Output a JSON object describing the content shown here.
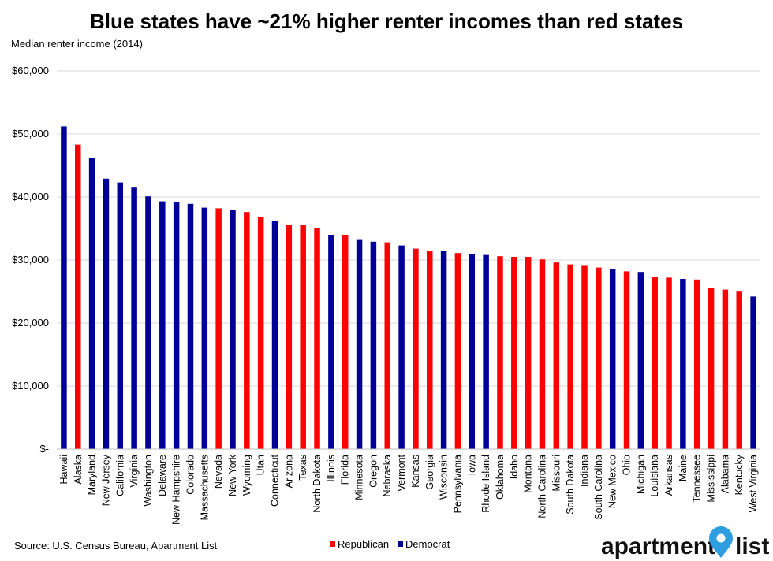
{
  "chart_data": {
    "type": "bar",
    "title": "Blue states have ~21% higher renter incomes than red states",
    "ylabel": "Median renter income (2014)",
    "xlabel": "",
    "ylim": [
      0,
      60000
    ],
    "yticks": [
      0,
      10000,
      20000,
      30000,
      40000,
      50000,
      60000
    ],
    "ytick_labels": [
      "$-",
      "$10,000",
      "$20,000",
      "$30,000",
      "$40,000",
      "$50,000",
      "$60,000"
    ],
    "grid": true,
    "legend_position": "bottom-center",
    "legend": [
      {
        "name": "Republican",
        "color": "#ff0000"
      },
      {
        "name": "Democrat",
        "color": "#000099"
      }
    ],
    "categories": [
      "Hawaii",
      "Alaska",
      "Maryland",
      "New Jersey",
      "California",
      "Virginia",
      "Washington",
      "Delaware",
      "New Hampshire",
      "Colorado",
      "Massachusetts",
      "Nevada",
      "New York",
      "Wyoming",
      "Utah",
      "Connecticut",
      "Arizona",
      "Texas",
      "North Dakota",
      "Illinois",
      "Florida",
      "Minnesota",
      "Oregon",
      "Nebraska",
      "Vermont",
      "Kansas",
      "Georgia",
      "Wisconsin",
      "Pennsylvania",
      "Iowa",
      "Rhode Island",
      "Oklahoma",
      "Idaho",
      "Montana",
      "North Carolina",
      "Missouri",
      "South Dakota",
      "Indiana",
      "South Carolina",
      "New Mexico",
      "Ohio",
      "Michigan",
      "Louisiana",
      "Arkansas",
      "Maine",
      "Tennessee",
      "Mississippi",
      "Alabama",
      "Kentucky",
      "West Virginia"
    ],
    "values": [
      51200,
      48300,
      46200,
      42900,
      42300,
      41600,
      40100,
      39300,
      39200,
      38900,
      38300,
      38200,
      37900,
      37600,
      36800,
      36200,
      35600,
      35500,
      35000,
      34000,
      34000,
      33300,
      32900,
      32800,
      32300,
      31800,
      31500,
      31500,
      31100,
      30900,
      30800,
      30600,
      30500,
      30500,
      30100,
      29600,
      29300,
      29200,
      28800,
      28500,
      28200,
      28100,
      27300,
      27200,
      27000,
      26900,
      25500,
      25300,
      25100,
      24200
    ],
    "parties": [
      "Democrat",
      "Republican",
      "Democrat",
      "Democrat",
      "Democrat",
      "Democrat",
      "Democrat",
      "Democrat",
      "Democrat",
      "Democrat",
      "Democrat",
      "Republican",
      "Democrat",
      "Republican",
      "Republican",
      "Democrat",
      "Republican",
      "Republican",
      "Republican",
      "Democrat",
      "Republican",
      "Democrat",
      "Democrat",
      "Republican",
      "Democrat",
      "Republican",
      "Republican",
      "Democrat",
      "Republican",
      "Democrat",
      "Democrat",
      "Republican",
      "Republican",
      "Republican",
      "Republican",
      "Republican",
      "Republican",
      "Republican",
      "Republican",
      "Democrat",
      "Republican",
      "Democrat",
      "Republican",
      "Republican",
      "Democrat",
      "Republican",
      "Republican",
      "Republican",
      "Republican",
      "Democrat"
    ]
  },
  "footer": {
    "source": "Source: U.S. Census Bureau, Apartment List",
    "logo_left": "apartment",
    "logo_right": "list"
  },
  "colors": {
    "republican": "#ff0000",
    "democrat": "#000099",
    "grid": "#d9d9d9",
    "logo_pin": "#2f9ee0"
  }
}
